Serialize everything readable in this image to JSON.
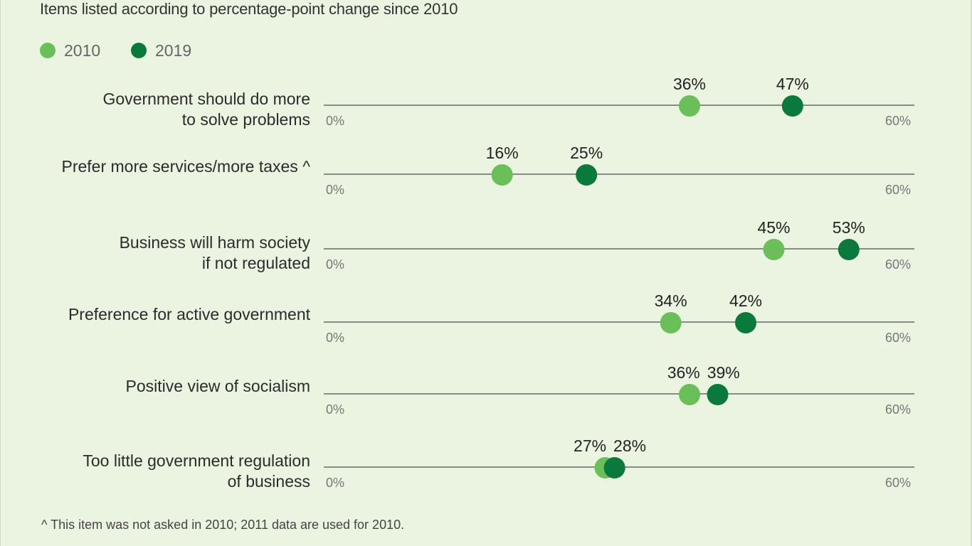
{
  "subtitle": "Items listed according to percentage-point change since 2010",
  "footnote": "^ This item was not asked in 2010; 2011 data are used for 2010.",
  "chart_data": {
    "type": "dot",
    "xlim": [
      0,
      60
    ],
    "tick_min_label": "0%",
    "tick_max_label": "60%",
    "series": [
      {
        "name": "2010",
        "color": "#6abf59"
      },
      {
        "name": "2019",
        "color": "#0a7a3c"
      }
    ],
    "categories": [
      {
        "label_lines": [
          "Government should do more",
          "to solve problems"
        ],
        "values": [
          36,
          47
        ],
        "value_labels": [
          "36%",
          "47%"
        ]
      },
      {
        "label_lines": [
          "Prefer more services/more taxes ^"
        ],
        "values": [
          16,
          25
        ],
        "value_labels": [
          "16%",
          "25%"
        ]
      },
      {
        "label_lines": [
          "Business will harm society",
          "if not regulated"
        ],
        "values": [
          45,
          53
        ],
        "value_labels": [
          "45%",
          "53%"
        ]
      },
      {
        "label_lines": [
          "Preference for active government"
        ],
        "values": [
          34,
          42
        ],
        "value_labels": [
          "34%",
          "42%"
        ]
      },
      {
        "label_lines": [
          "Positive view of socialism"
        ],
        "values": [
          36,
          39
        ],
        "value_labels": [
          "36%",
          "39%"
        ]
      },
      {
        "label_lines": [
          "Too little government regulation",
          "of business"
        ],
        "values": [
          27,
          28
        ],
        "value_labels": [
          "27%",
          "28%"
        ]
      }
    ]
  }
}
